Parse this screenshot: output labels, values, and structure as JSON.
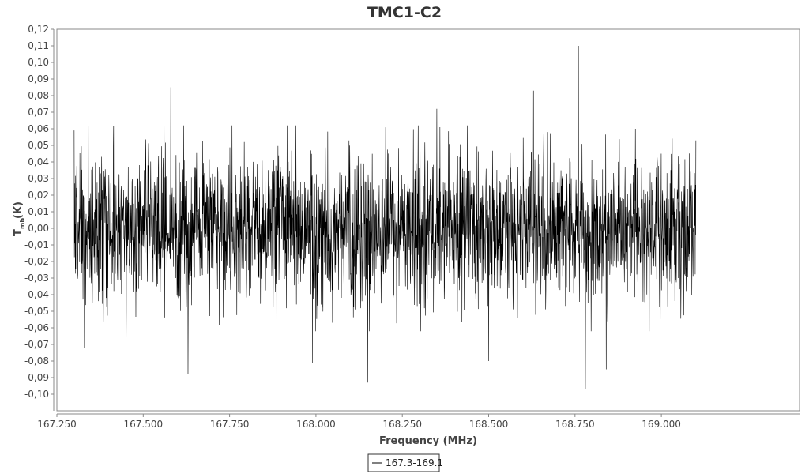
{
  "chart_data": {
    "type": "line",
    "title": "TMC1-C2",
    "xlabel": "Frequency (MHz)",
    "ylabel_main": "T",
    "ylabel_sub": "mb",
    "ylabel_unit": "(K)",
    "xlim": [
      167.25,
      169.4
    ],
    "ylim": [
      -0.11,
      0.12
    ],
    "x_ticks": [
      {
        "value": 167.25,
        "label": "167.250"
      },
      {
        "value": 167.5,
        "label": "167.500"
      },
      {
        "value": 167.75,
        "label": "167.750"
      },
      {
        "value": 168.0,
        "label": "168.000"
      },
      {
        "value": 168.25,
        "label": "168.250"
      },
      {
        "value": 168.5,
        "label": "168.500"
      },
      {
        "value": 168.75,
        "label": "168.750"
      },
      {
        "value": 169.0,
        "label": "169.000"
      }
    ],
    "y_ticks": [
      {
        "value": 0.12,
        "label": "0,12"
      },
      {
        "value": 0.11,
        "label": "0,11"
      },
      {
        "value": 0.1,
        "label": "0,10"
      },
      {
        "value": 0.09,
        "label": "0,09"
      },
      {
        "value": 0.08,
        "label": "0,08"
      },
      {
        "value": 0.07,
        "label": "0,07"
      },
      {
        "value": 0.06,
        "label": "0,06"
      },
      {
        "value": 0.05,
        "label": "0,05"
      },
      {
        "value": 0.04,
        "label": "0,04"
      },
      {
        "value": 0.03,
        "label": "0,03"
      },
      {
        "value": 0.02,
        "label": "0,02"
      },
      {
        "value": 0.01,
        "label": "0,01"
      },
      {
        "value": 0.0,
        "label": "0,00"
      },
      {
        "value": -0.01,
        "label": "-0,01"
      },
      {
        "value": -0.02,
        "label": "-0,02"
      },
      {
        "value": -0.03,
        "label": "-0,03"
      },
      {
        "value": -0.04,
        "label": "-0,04"
      },
      {
        "value": -0.05,
        "label": "-0,05"
      },
      {
        "value": -0.06,
        "label": "-0,06"
      },
      {
        "value": -0.07,
        "label": "-0,07"
      },
      {
        "value": -0.08,
        "label": "-0,08"
      },
      {
        "value": -0.09,
        "label": "-0,09"
      },
      {
        "value": -0.1,
        "label": "-0,10"
      }
    ],
    "grid": false,
    "legend_position": "bottom-center",
    "series": [
      {
        "name": "167.3-169.1",
        "color": "#000000",
        "x_range": [
          167.3,
          169.1
        ],
        "noise_amplitude": 0.035,
        "max_spike": {
          "x": 168.76,
          "y": 0.11
        },
        "min_spike": {
          "x": 168.78,
          "y": -0.097
        },
        "spikes": [
          {
            "x": 167.3,
            "y": 0.059
          },
          {
            "x": 167.33,
            "y": 0.073
          },
          {
            "x": 167.33,
            "y": -0.072
          },
          {
            "x": 167.45,
            "y": -0.079
          },
          {
            "x": 167.58,
            "y": 0.085
          },
          {
            "x": 167.63,
            "y": -0.088
          },
          {
            "x": 167.99,
            "y": -0.081
          },
          {
            "x": 168.15,
            "y": -0.093
          },
          {
            "x": 168.35,
            "y": 0.072
          },
          {
            "x": 168.5,
            "y": -0.08
          },
          {
            "x": 168.63,
            "y": 0.083
          },
          {
            "x": 168.76,
            "y": 0.11
          },
          {
            "x": 168.78,
            "y": -0.097
          },
          {
            "x": 168.84,
            "y": -0.085
          },
          {
            "x": 169.04,
            "y": 0.082
          },
          {
            "x": 169.1,
            "y": 0.053
          }
        ]
      }
    ]
  }
}
